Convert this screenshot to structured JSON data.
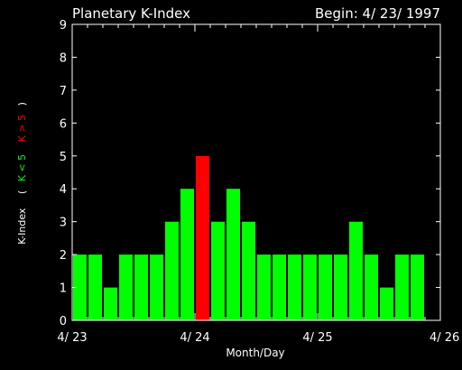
{
  "header": {
    "title": "Planetary K-Index",
    "begin_label": "Begin: 4/ 23/ 1997"
  },
  "ylabel": {
    "main": "K-Index",
    "open_paren": "(",
    "green_part": "K < 5",
    "red_part": "K > 5",
    "close_paren": ")"
  },
  "colors": {
    "normal_bar": "#00ff00",
    "storm_bar": "#ff0000",
    "axis": "#ffffff",
    "background": "#000000"
  },
  "chart_data": {
    "type": "bar",
    "title": "Planetary K-Index",
    "xlabel": "Month/Day",
    "ylabel": "K-Index",
    "ylim": [
      0,
      9
    ],
    "yticks": [
      0,
      1,
      2,
      3,
      4,
      5,
      6,
      7,
      8,
      9
    ],
    "xlim_days": [
      0,
      3
    ],
    "x_tick_labels": [
      "4/ 23",
      "4/ 24",
      "4/ 25",
      "4/ 26"
    ],
    "interval_hours": 3,
    "storm_threshold": 5,
    "values": [
      2,
      2,
      1,
      2,
      2,
      2,
      3,
      4,
      5,
      3,
      4,
      3,
      2,
      2,
      2,
      2,
      2,
      2,
      3,
      2,
      1,
      2,
      2
    ]
  }
}
